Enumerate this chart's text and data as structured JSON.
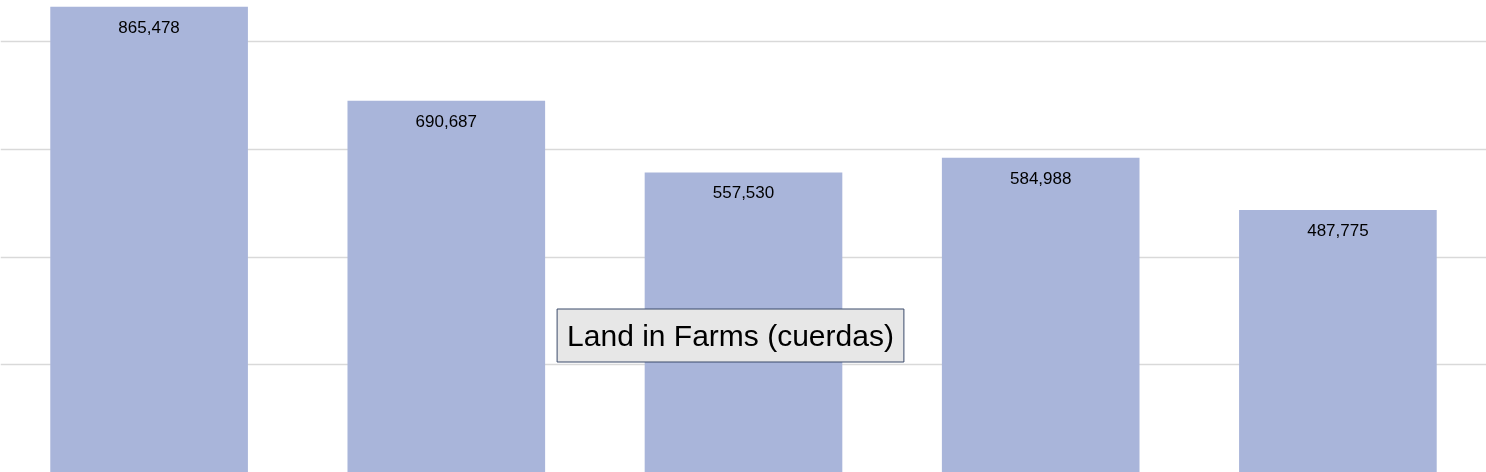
{
  "chart_data": {
    "type": "bar",
    "title": "Land in Farms (cuerdas)",
    "categories": [
      null,
      null,
      null,
      null,
      null
    ],
    "values": [
      865478,
      690687,
      557530,
      584988,
      487775
    ],
    "value_labels": [
      "865,478",
      "690,687",
      "557,530",
      "584,988",
      "487,775"
    ],
    "color": "#a9b5da",
    "tick_labels": false,
    "grid": "y"
  }
}
